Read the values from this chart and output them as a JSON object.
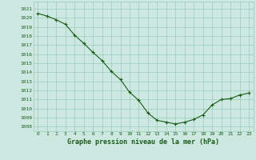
{
  "x": [
    0,
    1,
    2,
    3,
    4,
    5,
    6,
    7,
    8,
    9,
    10,
    11,
    12,
    13,
    14,
    15,
    16,
    17,
    18,
    19,
    20,
    21,
    22,
    23
  ],
  "y": [
    1020.5,
    1020.2,
    1019.8,
    1019.3,
    1018.1,
    1017.2,
    1016.2,
    1015.3,
    1014.1,
    1013.2,
    1011.8,
    1010.9,
    1009.5,
    1008.7,
    1008.5,
    1008.3,
    1008.5,
    1008.8,
    1009.3,
    1010.4,
    1011.0,
    1011.1,
    1011.5,
    1011.7
  ],
  "bg_color": "#cce8e0",
  "grid_color": "#99ccbb",
  "line_color": "#1a5c1a",
  "marker_color": "#1a5c1a",
  "ylabel_values": [
    1008,
    1009,
    1010,
    1011,
    1012,
    1013,
    1014,
    1015,
    1016,
    1017,
    1018,
    1019,
    1020,
    1021
  ],
  "ylim": [
    1007.5,
    1021.8
  ],
  "xlim": [
    -0.5,
    23.5
  ],
  "xlabel": "Graphe pression niveau de la mer (hPa)",
  "xlabel_color": "#1a5c1a",
  "tick_fontsize": 4.5,
  "xlabel_fontsize": 6.0
}
